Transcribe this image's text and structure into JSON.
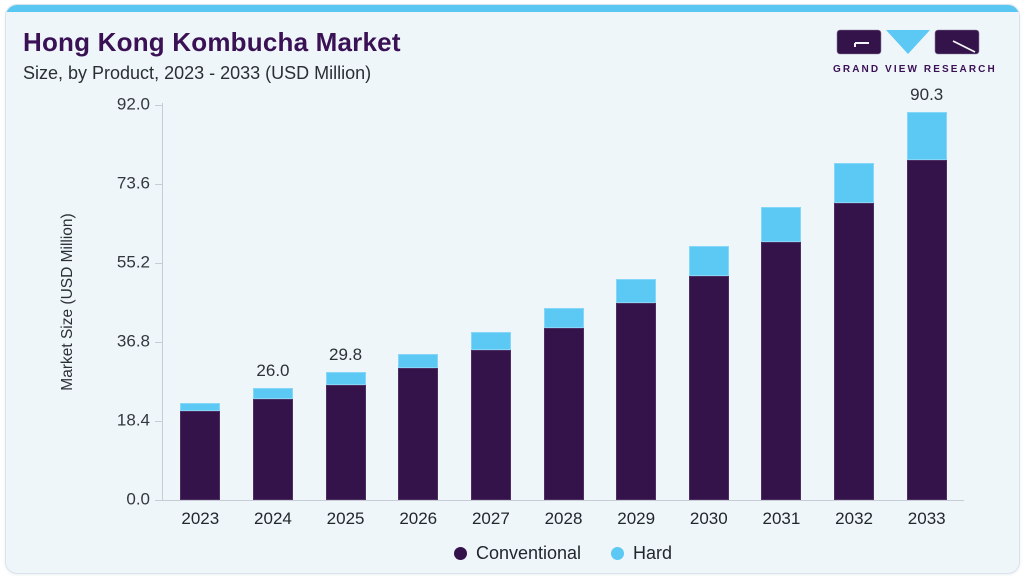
{
  "header": {
    "title": "Hong Kong Kombucha Market",
    "subtitle": "Size, by Product, 2023 - 2033 (USD Million)",
    "logo_text": "GRAND VIEW RESEARCH"
  },
  "colors": {
    "brand_purple": "#3a1154",
    "accent_blue": "#59c7f2",
    "bar_conventional": "#34134b",
    "bar_hard": "#5cc8f4",
    "card_bg": "#eff6fa",
    "axis_line": "#c6cdd6"
  },
  "chart_data": {
    "type": "bar",
    "stacked": true,
    "title": "Hong Kong Kombucha Market Size, by Product, 2023 - 2033 (USD Million)",
    "categories": [
      "2023",
      "2024",
      "2025",
      "2026",
      "2027",
      "2028",
      "2029",
      "2030",
      "2031",
      "2032",
      "2033"
    ],
    "series": [
      {
        "name": "Conventional",
        "color": "#34134b",
        "values": [
          20.7,
          23.5,
          26.9,
          30.7,
          35.0,
          40.1,
          45.8,
          52.2,
          60.0,
          69.1,
          79.3
        ]
      },
      {
        "name": "Hard",
        "color": "#5cc8f4",
        "values": [
          1.9,
          2.5,
          2.9,
          3.4,
          4.1,
          4.7,
          5.7,
          7.0,
          8.2,
          9.5,
          11.0
        ]
      }
    ],
    "totals": [
      22.6,
      26.0,
      29.8,
      34.1,
      39.1,
      44.8,
      51.5,
      59.2,
      68.2,
      78.6,
      90.3
    ],
    "point_labels": {
      "2024": "26.0",
      "2025": "29.8",
      "2033": "90.3"
    },
    "xlabel": "",
    "ylabel": "Market Size (USD Million)",
    "ylim": [
      0,
      92
    ],
    "yticks": [
      "0.0",
      "18.4",
      "36.8",
      "55.2",
      "73.6",
      "92.0"
    ],
    "grid": false,
    "legend_position": "bottom"
  }
}
